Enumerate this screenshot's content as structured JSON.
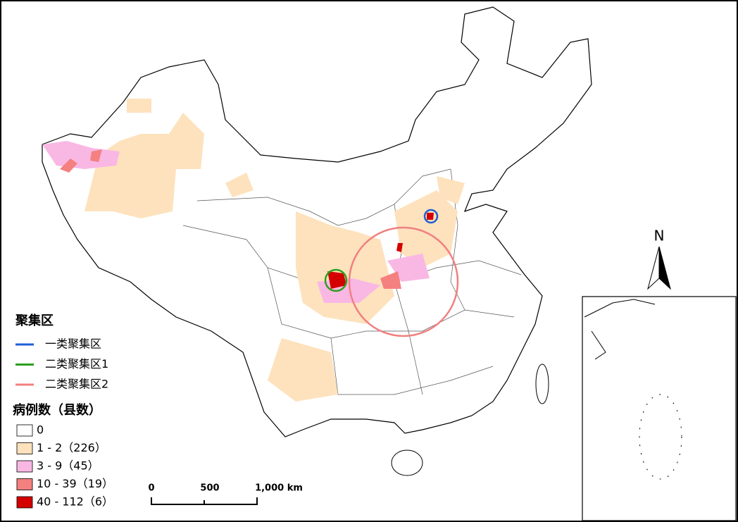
{
  "cluster_legend": {
    "title": "聚集区",
    "items": [
      {
        "label": "一类聚集区",
        "color": "#1f5fd6"
      },
      {
        "label": "二类聚集区1",
        "color": "#2ca01c"
      },
      {
        "label": "二类聚集区2",
        "color": "#f08080"
      }
    ]
  },
  "case_legend": {
    "title": "病例数（县数）",
    "items": [
      {
        "label": "0",
        "color": "#ffffff"
      },
      {
        "label": "1 - 2（226）",
        "color": "#fde2bd"
      },
      {
        "label": "3 - 9（45）",
        "color": "#f9b8e4"
      },
      {
        "label": "10 - 39（19）",
        "color": "#f48080"
      },
      {
        "label": "40 - 112（6）",
        "color": "#d40000"
      }
    ]
  },
  "scale_bar": {
    "labels": [
      "0",
      "500",
      "1,000 km"
    ]
  },
  "north_arrow": "N"
}
